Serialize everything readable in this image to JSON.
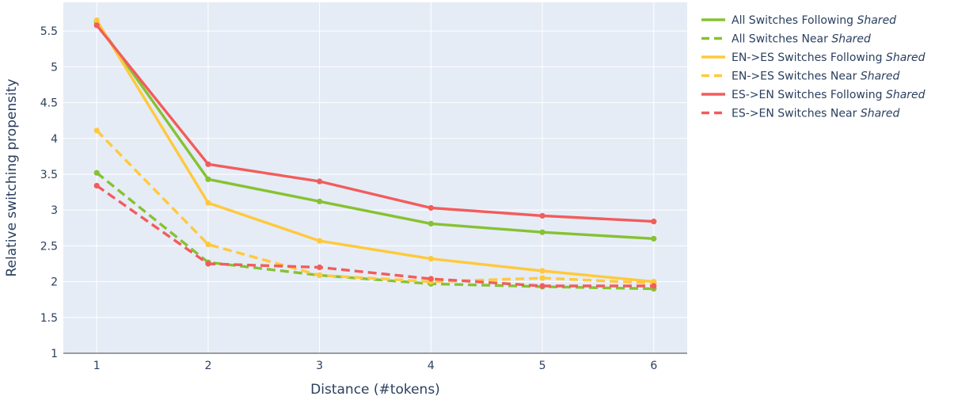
{
  "chart_data": {
    "type": "line",
    "title": "",
    "xlabel": "Distance (#tokens)",
    "ylabel": "Relative switching propensity",
    "x": [
      1,
      2,
      3,
      4,
      5,
      6
    ],
    "xticks": [
      "1",
      "2",
      "3",
      "4",
      "5",
      "6"
    ],
    "yticks": [
      "1",
      "1.5",
      "2",
      "2.5",
      "3",
      "3.5",
      "4",
      "4.5",
      "5",
      "5.5"
    ],
    "xlim": [
      0.7,
      6.3
    ],
    "ylim": [
      1,
      5.9
    ],
    "grid": true,
    "legend_position": "right",
    "background_color": "#e5ecf6",
    "series": [
      {
        "legend_prefix": "All Switches Following ",
        "legend_emph": "Shared",
        "color": "#86c232",
        "dash": "solid",
        "values": [
          5.62,
          3.43,
          3.12,
          2.81,
          2.69,
          2.6
        ]
      },
      {
        "legend_prefix": "All Switches Near ",
        "legend_emph": "Shared",
        "color": "#86c232",
        "dash": "dash",
        "values": [
          3.52,
          2.27,
          2.09,
          1.97,
          1.93,
          1.9
        ]
      },
      {
        "legend_prefix": "EN->ES Switches Following ",
        "legend_emph": "Shared",
        "color": "#ffc93c",
        "dash": "solid",
        "values": [
          5.65,
          3.1,
          2.57,
          2.32,
          2.15,
          2.0
        ]
      },
      {
        "legend_prefix": "EN->ES Switches Near ",
        "legend_emph": "Shared",
        "color": "#ffc93c",
        "dash": "dash",
        "values": [
          4.11,
          2.52,
          2.09,
          2.0,
          2.05,
          1.98
        ]
      },
      {
        "legend_prefix": "ES->EN Switches Following ",
        "legend_emph": "Shared",
        "color": "#f25c5c",
        "dash": "solid",
        "values": [
          5.58,
          3.64,
          3.4,
          3.03,
          2.92,
          2.84
        ]
      },
      {
        "legend_prefix": "ES->EN Switches Near ",
        "legend_emph": "Shared",
        "color": "#f25c5c",
        "dash": "dash",
        "values": [
          3.34,
          2.25,
          2.2,
          2.04,
          1.94,
          1.94
        ]
      }
    ]
  }
}
